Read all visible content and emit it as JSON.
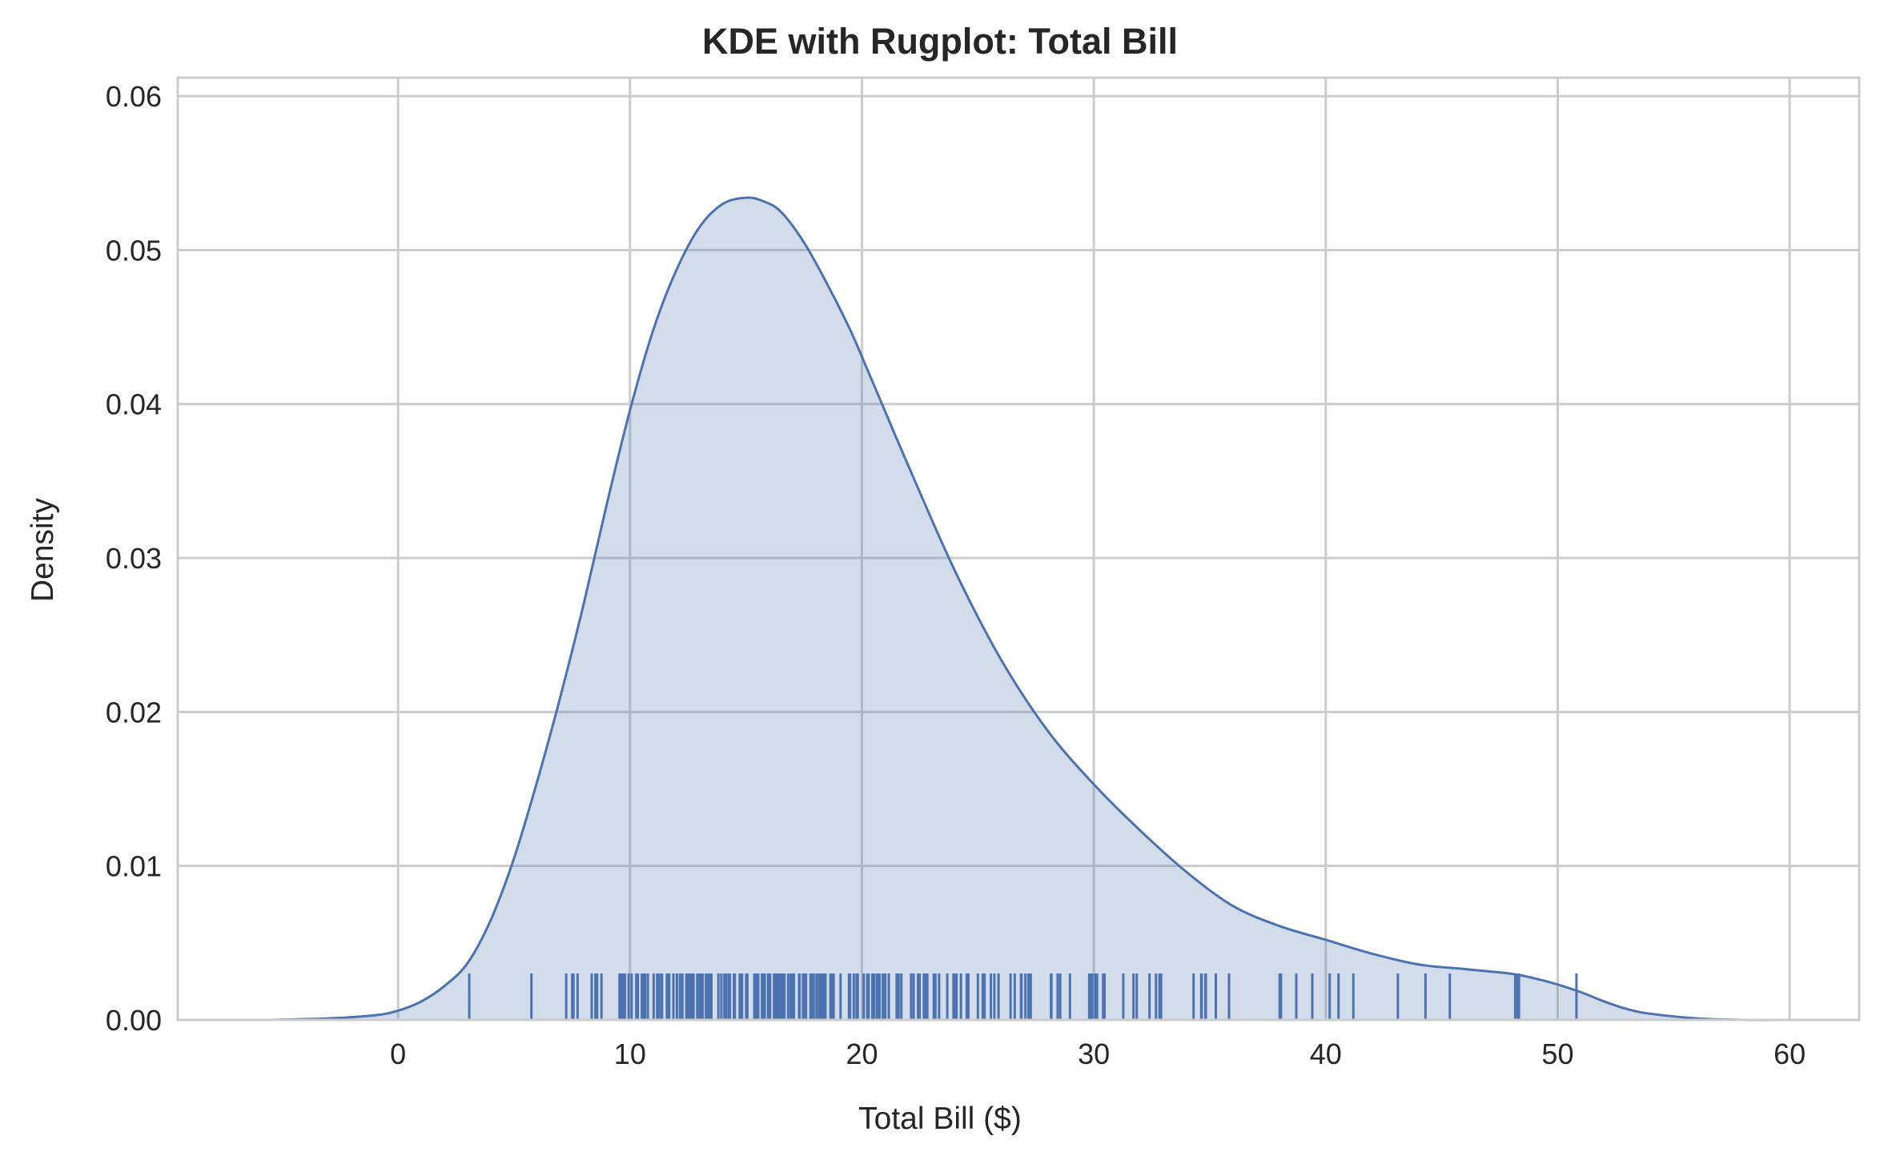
{
  "chart_data": {
    "type": "area",
    "title": "KDE with Rugplot: Total Bill",
    "xlabel": "Total Bill ($)",
    "ylabel": "Density",
    "xlim": [
      -9.5,
      63.0
    ],
    "ylim": [
      0.0,
      0.0612
    ],
    "x_ticks": [
      0,
      10,
      20,
      30,
      40,
      50,
      60
    ],
    "y_ticks": [
      0.0,
      0.01,
      0.02,
      0.03,
      0.04,
      0.05,
      0.06
    ],
    "x_tick_labels": [
      "0",
      "10",
      "20",
      "30",
      "40",
      "50",
      "60"
    ],
    "y_tick_labels": [
      "0.00",
      "0.01",
      "0.02",
      "0.03",
      "0.04",
      "0.05",
      "0.06"
    ],
    "grid": true,
    "colors": {
      "line": "#4c72b0",
      "fill": "#4c72b0",
      "grid": "#cccccc",
      "spine": "#cccccc"
    },
    "kde": {
      "x": [
        -5.5,
        -3,
        -1,
        0,
        1,
        2,
        3,
        4,
        5,
        6,
        7,
        8,
        9,
        10,
        11,
        12,
        13,
        14,
        15,
        15.7,
        16.5,
        17.5,
        18.5,
        19.5,
        20.5,
        22,
        24,
        26,
        28,
        30,
        32,
        34,
        36,
        38,
        40,
        42,
        44,
        46,
        48,
        49,
        50,
        51,
        52,
        53,
        54,
        56,
        58,
        59.7
      ],
      "y": [
        0.0,
        0.0001,
        0.0003,
        0.0006,
        0.0012,
        0.0022,
        0.0037,
        0.0065,
        0.0105,
        0.0155,
        0.021,
        0.027,
        0.0335,
        0.0396,
        0.0448,
        0.0487,
        0.0515,
        0.053,
        0.0534,
        0.0532,
        0.0525,
        0.0505,
        0.0478,
        0.0448,
        0.0413,
        0.036,
        0.0292,
        0.0234,
        0.0188,
        0.0153,
        0.0123,
        0.0096,
        0.0074,
        0.0061,
        0.0052,
        0.0043,
        0.0036,
        0.0033,
        0.003,
        0.0027,
        0.0023,
        0.0018,
        0.0012,
        0.0007,
        0.0004,
        0.0001,
        0.0,
        0.0
      ]
    },
    "rug": [
      3.07,
      5.75,
      7.25,
      7.51,
      7.56,
      7.74,
      8.35,
      8.51,
      8.52,
      8.58,
      8.77,
      9.55,
      9.6,
      9.68,
      9.78,
      9.94,
      10.07,
      10.27,
      10.29,
      10.33,
      10.34,
      10.51,
      10.59,
      10.63,
      10.65,
      10.77,
      11.02,
      11.17,
      11.24,
      11.35,
      11.38,
      11.59,
      11.61,
      11.69,
      11.87,
      12.02,
      12.03,
      12.16,
      12.26,
      12.43,
      12.46,
      12.54,
      12.6,
      12.66,
      12.69,
      12.74,
      12.9,
      13.0,
      13.03,
      13.13,
      13.27,
      13.28,
      13.37,
      13.39,
      13.42,
      13.51,
      13.81,
      13.94,
      14.07,
      14.15,
      14.26,
      14.31,
      14.48,
      14.52,
      14.73,
      14.78,
      14.83,
      15.01,
      15.04,
      15.06,
      15.36,
      15.38,
      15.42,
      15.48,
      15.53,
      15.69,
      15.77,
      15.81,
      15.95,
      15.98,
      16.0,
      16.04,
      16.21,
      16.27,
      16.29,
      16.31,
      16.4,
      16.45,
      16.47,
      16.49,
      16.58,
      16.66,
      16.82,
      16.93,
      16.97,
      16.99,
      17.07,
      17.29,
      17.31,
      17.46,
      17.47,
      17.51,
      17.59,
      17.78,
      17.81,
      17.82,
      17.89,
      17.92,
      18.04,
      18.15,
      18.24,
      18.26,
      18.28,
      18.29,
      18.35,
      18.43,
      18.64,
      18.69,
      18.71,
      18.78,
      19.08,
      19.44,
      19.49,
      19.65,
      19.77,
      19.81,
      19.82,
      20.08,
      20.23,
      20.27,
      20.29,
      20.45,
      20.49,
      20.53,
      20.65,
      20.69,
      20.76,
      20.9,
      20.92,
      21.01,
      21.16,
      21.5,
      21.58,
      21.7,
      22.12,
      22.23,
      22.42,
      22.49,
      22.67,
      22.75,
      22.76,
      22.82,
      23.1,
      23.17,
      23.33,
      23.68,
      23.95,
      24.01,
      24.06,
      24.08,
      24.27,
      24.52,
      24.55,
      24.59,
      25.0,
      25.21,
      25.28,
      25.29,
      25.56,
      25.71,
      25.89,
      26.41,
      26.59,
      26.86,
      26.88,
      27.05,
      27.18,
      27.2,
      27.28,
      28.15,
      28.17,
      28.44,
      28.55,
      28.97,
      29.8,
      29.85,
      29.93,
      30.06,
      30.14,
      30.4,
      30.46,
      31.27,
      31.71,
      31.85,
      32.4,
      32.68,
      32.83,
      32.9,
      34.3,
      34.63,
      34.65,
      34.81,
      34.83,
      35.26,
      35.83,
      38.01,
      38.07,
      38.73,
      39.42,
      40.17,
      40.55,
      41.19,
      43.11,
      44.3,
      45.35,
      48.17,
      48.27,
      48.33,
      50.81
    ]
  }
}
